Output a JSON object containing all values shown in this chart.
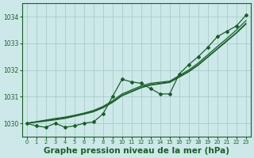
{
  "title": "Graphe pression niveau de la mer (hPa)",
  "xlabel_fontsize": 7.5,
  "bg_color": "#cce8e8",
  "grid_color": "#aacccc",
  "line_color": "#1a5e2a",
  "marker": "D",
  "markersize": 2.0,
  "linewidth": 0.9,
  "xlim": [
    -0.5,
    23.5
  ],
  "ylim": [
    1029.5,
    1034.5
  ],
  "yticks": [
    1030,
    1031,
    1032,
    1033,
    1034
  ],
  "xticks": [
    0,
    1,
    2,
    3,
    4,
    5,
    6,
    7,
    8,
    9,
    10,
    11,
    12,
    13,
    14,
    15,
    16,
    17,
    18,
    19,
    20,
    21,
    22,
    23
  ],
  "main_series": [
    1030.0,
    1029.9,
    1029.85,
    1030.0,
    1029.85,
    1029.9,
    1030.0,
    1030.05,
    1030.35,
    1031.0,
    1031.65,
    1031.55,
    1031.5,
    1031.3,
    1031.1,
    1031.1,
    1031.85,
    1032.2,
    1032.5,
    1032.85,
    1033.25,
    1033.45,
    1033.65,
    1034.05
  ],
  "smooth1": [
    1030.0,
    1030.05,
    1030.1,
    1030.15,
    1030.2,
    1030.28,
    1030.36,
    1030.45,
    1030.6,
    1030.8,
    1031.05,
    1031.2,
    1031.35,
    1031.45,
    1031.5,
    1031.55,
    1031.75,
    1031.95,
    1032.2,
    1032.5,
    1032.8,
    1033.1,
    1033.4,
    1033.75
  ],
  "smooth2": [
    1030.0,
    1030.04,
    1030.08,
    1030.13,
    1030.18,
    1030.26,
    1030.34,
    1030.43,
    1030.58,
    1030.78,
    1031.03,
    1031.18,
    1031.33,
    1031.43,
    1031.48,
    1031.53,
    1031.73,
    1031.93,
    1032.18,
    1032.48,
    1032.78,
    1033.08,
    1033.38,
    1033.72
  ],
  "smooth3": [
    1030.0,
    1030.06,
    1030.12,
    1030.18,
    1030.23,
    1030.3,
    1030.38,
    1030.48,
    1030.63,
    1030.84,
    1031.1,
    1031.25,
    1031.4,
    1031.5,
    1031.54,
    1031.58,
    1031.79,
    1032.0,
    1032.26,
    1032.57,
    1032.88,
    1033.18,
    1033.5,
    1033.85
  ]
}
